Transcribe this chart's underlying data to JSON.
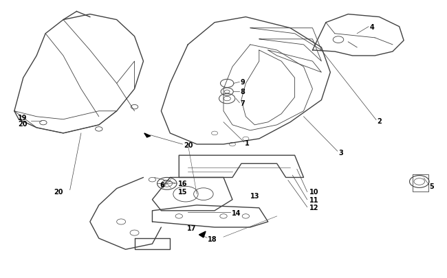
{
  "bg_color": "#ffffff",
  "line_color": "#404040",
  "text_color": "#000000",
  "figsize": [
    6.5,
    4.06
  ],
  "dpi": 100
}
